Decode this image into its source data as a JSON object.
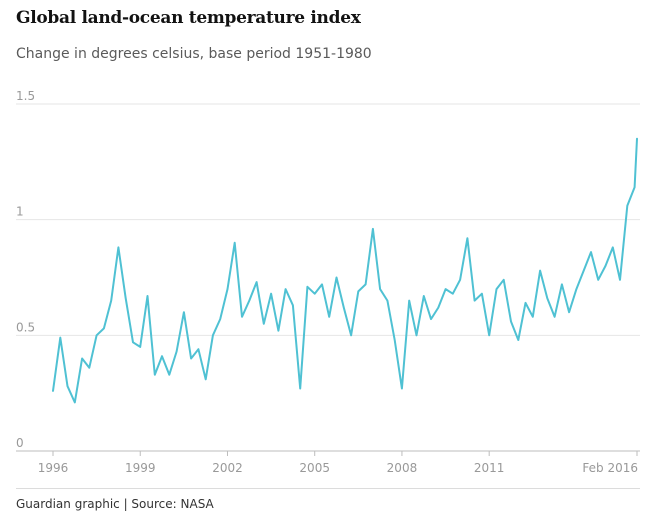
{
  "title": "Global land-ocean temperature index",
  "subtitle": "Change in degrees celsius, base period 1951-1980",
  "footer": "Guardian graphic | Source: NASA",
  "colors": {
    "line": "#4fc1d3",
    "grid": "#e6e6e6",
    "tick_text": "#999999",
    "axis": "#bdbdbd"
  },
  "chart_data": {
    "type": "line",
    "title": "Global land-ocean temperature index",
    "subtitle": "Change in degrees celsius, base period 1951-1980",
    "xlabel": "",
    "ylabel": "",
    "ylim": [
      0,
      1.5
    ],
    "xlim": [
      "1996-01",
      "2016-02"
    ],
    "yticks": [
      0,
      0.5,
      1,
      1.5
    ],
    "ytick_labels": [
      "0",
      "0.5",
      "1",
      "1.5"
    ],
    "xticks": [
      "1996-01",
      "1999-01",
      "2002-01",
      "2005-01",
      "2008-01",
      "2011-01",
      "2016-02"
    ],
    "xtick_labels": [
      "1996",
      "1999",
      "2002",
      "2005",
      "2008",
      "2011",
      "Feb 2016"
    ],
    "grid": true,
    "series": [
      {
        "color": "#4fc1d3",
        "x": [
          "1996-01",
          "1996-04",
          "1996-07",
          "1996-10",
          "1997-01",
          "1997-04",
          "1997-07",
          "1997-10",
          "1998-01",
          "1998-04",
          "1998-07",
          "1998-10",
          "1999-01",
          "1999-04",
          "1999-07",
          "1999-10",
          "2000-01",
          "2000-04",
          "2000-07",
          "2000-10",
          "2001-01",
          "2001-04",
          "2001-07",
          "2001-10",
          "2002-01",
          "2002-04",
          "2002-07",
          "2002-10",
          "2003-01",
          "2003-04",
          "2003-07",
          "2003-10",
          "2004-01",
          "2004-04",
          "2004-07",
          "2004-10",
          "2005-01",
          "2005-04",
          "2005-07",
          "2005-10",
          "2006-01",
          "2006-04",
          "2006-07",
          "2006-10",
          "2007-01",
          "2007-04",
          "2007-07",
          "2007-10",
          "2008-01",
          "2008-04",
          "2008-07",
          "2008-10",
          "2009-01",
          "2009-04",
          "2009-07",
          "2009-10",
          "2010-01",
          "2010-04",
          "2010-07",
          "2010-10",
          "2011-01",
          "2011-04",
          "2011-07",
          "2011-10",
          "2012-01",
          "2012-04",
          "2012-07",
          "2012-10",
          "2013-01",
          "2013-04",
          "2013-07",
          "2013-10",
          "2014-01",
          "2014-04",
          "2014-07",
          "2014-10",
          "2015-01",
          "2015-04",
          "2015-07",
          "2015-10",
          "2016-01",
          "2016-02"
        ],
        "y": [
          0.26,
          0.49,
          0.28,
          0.21,
          0.4,
          0.36,
          0.5,
          0.53,
          0.65,
          0.88,
          0.66,
          0.47,
          0.45,
          0.67,
          0.33,
          0.41,
          0.33,
          0.43,
          0.6,
          0.4,
          0.44,
          0.31,
          0.5,
          0.57,
          0.7,
          0.9,
          0.58,
          0.65,
          0.73,
          0.55,
          0.68,
          0.52,
          0.7,
          0.63,
          0.27,
          0.71,
          0.68,
          0.72,
          0.58,
          0.75,
          0.62,
          0.5,
          0.69,
          0.72,
          0.96,
          0.7,
          0.65,
          0.48,
          0.27,
          0.65,
          0.5,
          0.67,
          0.57,
          0.62,
          0.7,
          0.68,
          0.74,
          0.92,
          0.65,
          0.68,
          0.5,
          0.7,
          0.74,
          0.56,
          0.48,
          0.64,
          0.58,
          0.78,
          0.66,
          0.58,
          0.72,
          0.6,
          0.7,
          0.78,
          0.86,
          0.74,
          0.8,
          0.88,
          0.74,
          1.06,
          1.14,
          1.35
        ]
      }
    ]
  }
}
